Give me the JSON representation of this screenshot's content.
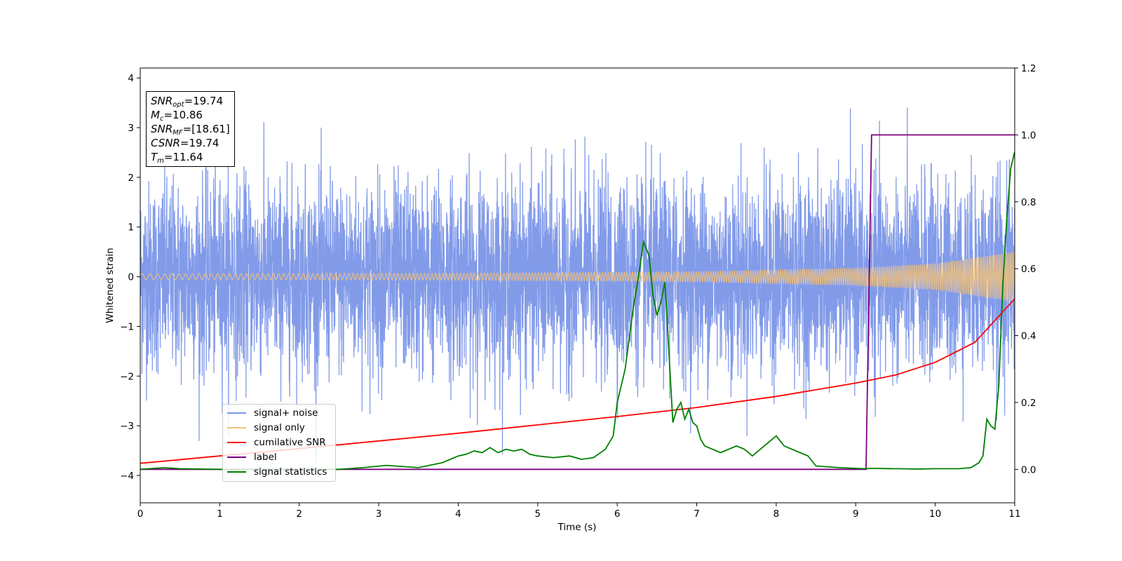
{
  "chart_data": {
    "type": "line",
    "xlabel": "Time (s)",
    "ylabel": "Whitened strain",
    "xlim": [
      0,
      11
    ],
    "ylim": [
      -4.55,
      4.2
    ],
    "y2lim": [
      -0.1,
      1.2
    ],
    "x_ticks": [
      "0",
      "1",
      "2",
      "3",
      "4",
      "5",
      "6",
      "7",
      "8",
      "9",
      "10",
      "11"
    ],
    "y_ticks": [
      "−4",
      "−3",
      "−2",
      "−1",
      "0",
      "1",
      "2",
      "3",
      "4"
    ],
    "y2_ticks": [
      "0.0",
      "0.2",
      "0.4",
      "0.6",
      "0.8",
      "1.0",
      "1.2"
    ],
    "legend_position": "lower-left",
    "annotation": {
      "snr_opt_base": "SNR",
      "snr_opt_sub": "opt",
      "snr_opt_val": "=19.74",
      "mc_base": "M",
      "mc_sub": "c",
      "mc_val": "=10.86",
      "snr_mf_base": "SNR",
      "snr_mf_sub": "MF",
      "snr_mf_val": "=[18.61]",
      "csnr_base": "CSNR",
      "csnr_val": "=19.74",
      "tm_base": "T",
      "tm_sub": "m",
      "tm_val": "=11.64"
    },
    "series": [
      {
        "name": "signal+ noise",
        "color": "#7b96e8",
        "axis": "left",
        "description_values": {
          "mean": 0,
          "typical_envelope": [
            -2.3,
            2.5
          ],
          "extremes": [
            -3.75,
            3.8
          ]
        }
      },
      {
        "name": "signal only",
        "color": "#f3c27a",
        "axis": "left",
        "amplitude_points": {
          "x": [
            0,
            4,
            7,
            9,
            10,
            11
          ],
          "y": [
            0.06,
            0.07,
            0.1,
            0.17,
            0.26,
            0.5
          ]
        }
      },
      {
        "name": "cumilative SNR",
        "color": "#ff0000",
        "axis": "right",
        "x": [
          0,
          1,
          2,
          3,
          4,
          5,
          6,
          7,
          8,
          9,
          9.5,
          10,
          10.5,
          11
        ],
        "y": [
          0.018,
          0.04,
          0.062,
          0.085,
          0.108,
          0.133,
          0.158,
          0.185,
          0.218,
          0.258,
          0.282,
          0.32,
          0.38,
          0.51
        ]
      },
      {
        "name": "label",
        "color": "#800080",
        "axis": "right",
        "x": [
          0,
          9.13,
          9.2,
          11
        ],
        "y": [
          0.0,
          0.0,
          1.0,
          1.0
        ]
      },
      {
        "name": "signal statistics",
        "color": "#008000",
        "axis": "right",
        "x": [
          0,
          0.3,
          0.5,
          1,
          1.5,
          2,
          2.5,
          2.8,
          3.1,
          3.5,
          3.8,
          3.9,
          4.0,
          4.1,
          4.2,
          4.3,
          4.4,
          4.5,
          4.6,
          4.7,
          4.8,
          4.9,
          5.0,
          5.2,
          5.4,
          5.55,
          5.7,
          5.85,
          5.95,
          6.0,
          6.1,
          6.2,
          6.27,
          6.33,
          6.4,
          6.45,
          6.5,
          6.55,
          6.6,
          6.65,
          6.7,
          6.75,
          6.8,
          6.85,
          6.9,
          6.95,
          7.0,
          7.05,
          7.1,
          7.2,
          7.3,
          7.4,
          7.5,
          7.6,
          7.7,
          7.8,
          7.9,
          8.0,
          8.1,
          8.3,
          8.4,
          8.5,
          8.8,
          9.1,
          9.2,
          9.5,
          9.8,
          10.0,
          10.3,
          10.45,
          10.55,
          10.6,
          10.65,
          10.7,
          10.75,
          10.8,
          10.85,
          10.9,
          10.95,
          11.0
        ],
        "y": [
          0.0,
          0.005,
          0.002,
          0.0,
          0.0,
          0.0,
          0.0,
          0.005,
          0.012,
          0.005,
          0.02,
          0.03,
          0.04,
          0.045,
          0.055,
          0.05,
          0.065,
          0.05,
          0.06,
          0.055,
          0.06,
          0.045,
          0.04,
          0.035,
          0.04,
          0.03,
          0.035,
          0.06,
          0.1,
          0.2,
          0.3,
          0.48,
          0.58,
          0.68,
          0.64,
          0.52,
          0.46,
          0.5,
          0.56,
          0.35,
          0.14,
          0.18,
          0.2,
          0.15,
          0.18,
          0.14,
          0.13,
          0.09,
          0.07,
          0.06,
          0.05,
          0.06,
          0.07,
          0.06,
          0.04,
          0.06,
          0.08,
          0.1,
          0.07,
          0.05,
          0.04,
          0.01,
          0.005,
          0.002,
          0.003,
          0.002,
          0.001,
          0.002,
          0.002,
          0.005,
          0.02,
          0.04,
          0.15,
          0.13,
          0.12,
          0.25,
          0.55,
          0.75,
          0.9,
          0.95
        ]
      }
    ]
  }
}
